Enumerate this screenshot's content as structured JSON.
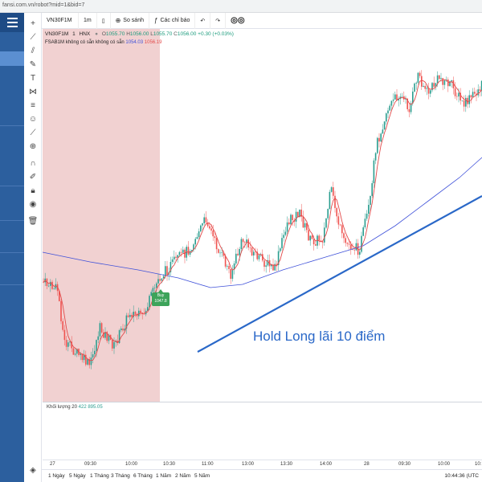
{
  "browser": {
    "url": "fansi.com.vn/robot?mid=1&bid=7"
  },
  "toolbar": {
    "symbol": "VN30F1M",
    "interval": "1m",
    "compare": "So sánh",
    "indicators": "Các chỉ báo"
  },
  "legend": {
    "name": "VN30F1M",
    "interval": "1",
    "exchange": "HNX",
    "open_label": "O",
    "open": "1055.70",
    "high_label": "H",
    "high": "1056.00",
    "low_label": "L",
    "low": "1055.70",
    "close_label": "C",
    "close": "1056.00",
    "change": "+0.30 (+0.03%)",
    "study": "FSAB1M",
    "study_args": "không có sẵn  không có sẵn",
    "study_v1": "1054.03",
    "study_v2": "1056.19"
  },
  "buy_marker": {
    "line1": "Buy",
    "line2": "1047.8"
  },
  "annotation": "Hold Long lãi 10 điểm",
  "volume": {
    "label": "Khối lượng 20",
    "v1": "422",
    "v2": "895.05"
  },
  "time_axis": [
    "27",
    "09:30",
    "10:00",
    "10:30",
    "11:00",
    "13:00",
    "13:30",
    "14:00",
    "28",
    "09:30",
    "10:00",
    "10:"
  ],
  "ranges": [
    "1 Ngày",
    "5 Ngày",
    "1 Tháng",
    "3 Tháng",
    "6 Tháng",
    "1 Năm",
    "2 Năm",
    "5 Năm"
  ],
  "clock": "10:44:36 (UTC",
  "colors": {
    "sidebar": "#2c5f9e",
    "up": "#2a9d8f",
    "down": "#ef5350",
    "ma_fast": "#e34a4a",
    "ma_slow": "#3f51d9",
    "trend": "#2a68c8",
    "buy": "#3da35a"
  },
  "icons": [
    "menu-icon",
    "crosshair-icon",
    "trend-line-icon",
    "brush-icon",
    "text-icon",
    "pattern-icon",
    "fib-icon",
    "emoji-icon",
    "ruler-icon",
    "zoom-icon",
    "magnet-icon",
    "lock-icon",
    "eye-icon",
    "trash-icon"
  ]
}
